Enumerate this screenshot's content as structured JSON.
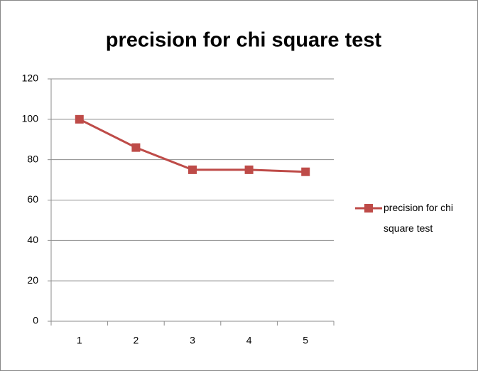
{
  "chart_data": {
    "type": "line",
    "title": "precision for chi square test",
    "categories": [
      "1",
      "2",
      "3",
      "4",
      "5"
    ],
    "series": [
      {
        "name": "precision for chi square test",
        "color": "#be4b48",
        "values": [
          100,
          86,
          75,
          75,
          74
        ]
      }
    ],
    "ylim": [
      0,
      120
    ],
    "yticks": [
      0,
      20,
      40,
      60,
      80,
      100,
      120
    ],
    "grid": true,
    "legend": "right"
  }
}
